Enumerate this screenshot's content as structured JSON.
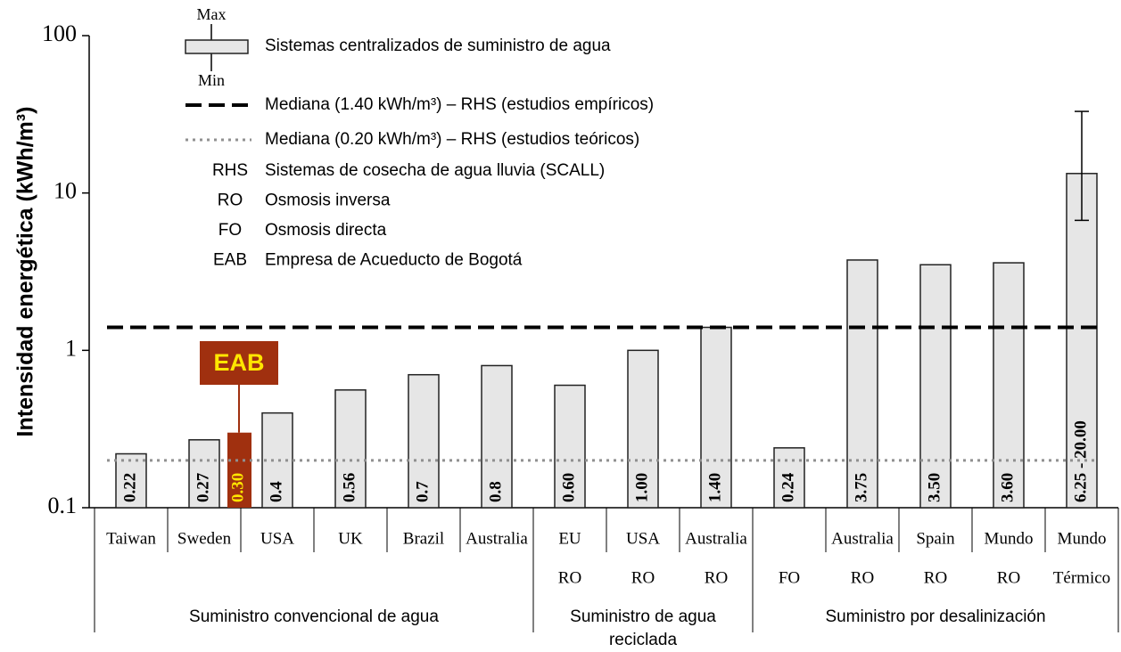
{
  "chart_data": {
    "type": "bar",
    "y_label": "Intensidad energética (kWh/m³)",
    "log_scale": true,
    "ylim": [
      0.1,
      100
    ],
    "yticks": [
      0.1,
      1,
      10,
      100
    ],
    "categories": [
      "Taiwan",
      "Sweden",
      "USA",
      "UK",
      "Brazil",
      "Australia",
      "EU",
      "USA",
      "Australia",
      null,
      "Australia",
      "Spain",
      "Mundo",
      "Mundo"
    ],
    "sub_categories": [
      null,
      null,
      null,
      null,
      null,
      null,
      "RO",
      "RO",
      "RO",
      "FO",
      "RO",
      "RO",
      "RO",
      "Térmico"
    ],
    "values": [
      0.22,
      0.27,
      0.4,
      0.56,
      0.7,
      0.8,
      0.6,
      1.0,
      1.4,
      0.24,
      3.75,
      3.5,
      3.6,
      13.3
    ],
    "value_labels": [
      "0.22",
      "0.27",
      "0.4",
      "0.56",
      "0.7",
      "0.8",
      "0.60",
      "1.00",
      "1.40",
      "0.24",
      "3.75",
      "3.50",
      "3.60",
      null
    ],
    "error_low": [
      null,
      null,
      null,
      null,
      null,
      null,
      null,
      null,
      null,
      null,
      null,
      null,
      null,
      6.7
    ],
    "error_high": [
      null,
      null,
      null,
      null,
      null,
      null,
      null,
      null,
      null,
      null,
      null,
      null,
      null,
      33
    ],
    "range_label": "6.25 - 20.00",
    "color": "#e6e6e6",
    "groups": [
      {
        "label": "Suministro convencional de agua",
        "size": 6
      },
      {
        "label": "Suministro de agua reciclada",
        "size": 3
      },
      {
        "label": "Suministro por desalinización",
        "size": 5
      }
    ],
    "highlight": {
      "label": "EAB",
      "value": 0.3,
      "value_label": "0.30",
      "color": "#a0300f",
      "text_color": "#ffe600"
    },
    "reference_lines": [
      {
        "value": 1.4,
        "label": "Mediana (1.40 kWh/m³) – RHS (estudios empíricos)",
        "style": "dashed",
        "color": "#000000"
      },
      {
        "value": 0.2,
        "label": "Mediana (0.20 kWh/m³) – RHS (estudios teóricos)",
        "style": "dotted",
        "color": "#909090"
      }
    ],
    "legend": {
      "box_label": "Sistemas centralizados de suministro de agua",
      "max_label": "Max",
      "min_label": "Min"
    },
    "abbreviations": [
      {
        "key": "RHS",
        "text": "Sistemas de cosecha de agua lluvia (SCALL)"
      },
      {
        "key": "RO",
        "text": "Osmosis inversa"
      },
      {
        "key": "FO",
        "text": "Osmosis directa"
      },
      {
        "key": "EAB",
        "text": "Empresa de Acueducto de Bogotá"
      }
    ]
  }
}
